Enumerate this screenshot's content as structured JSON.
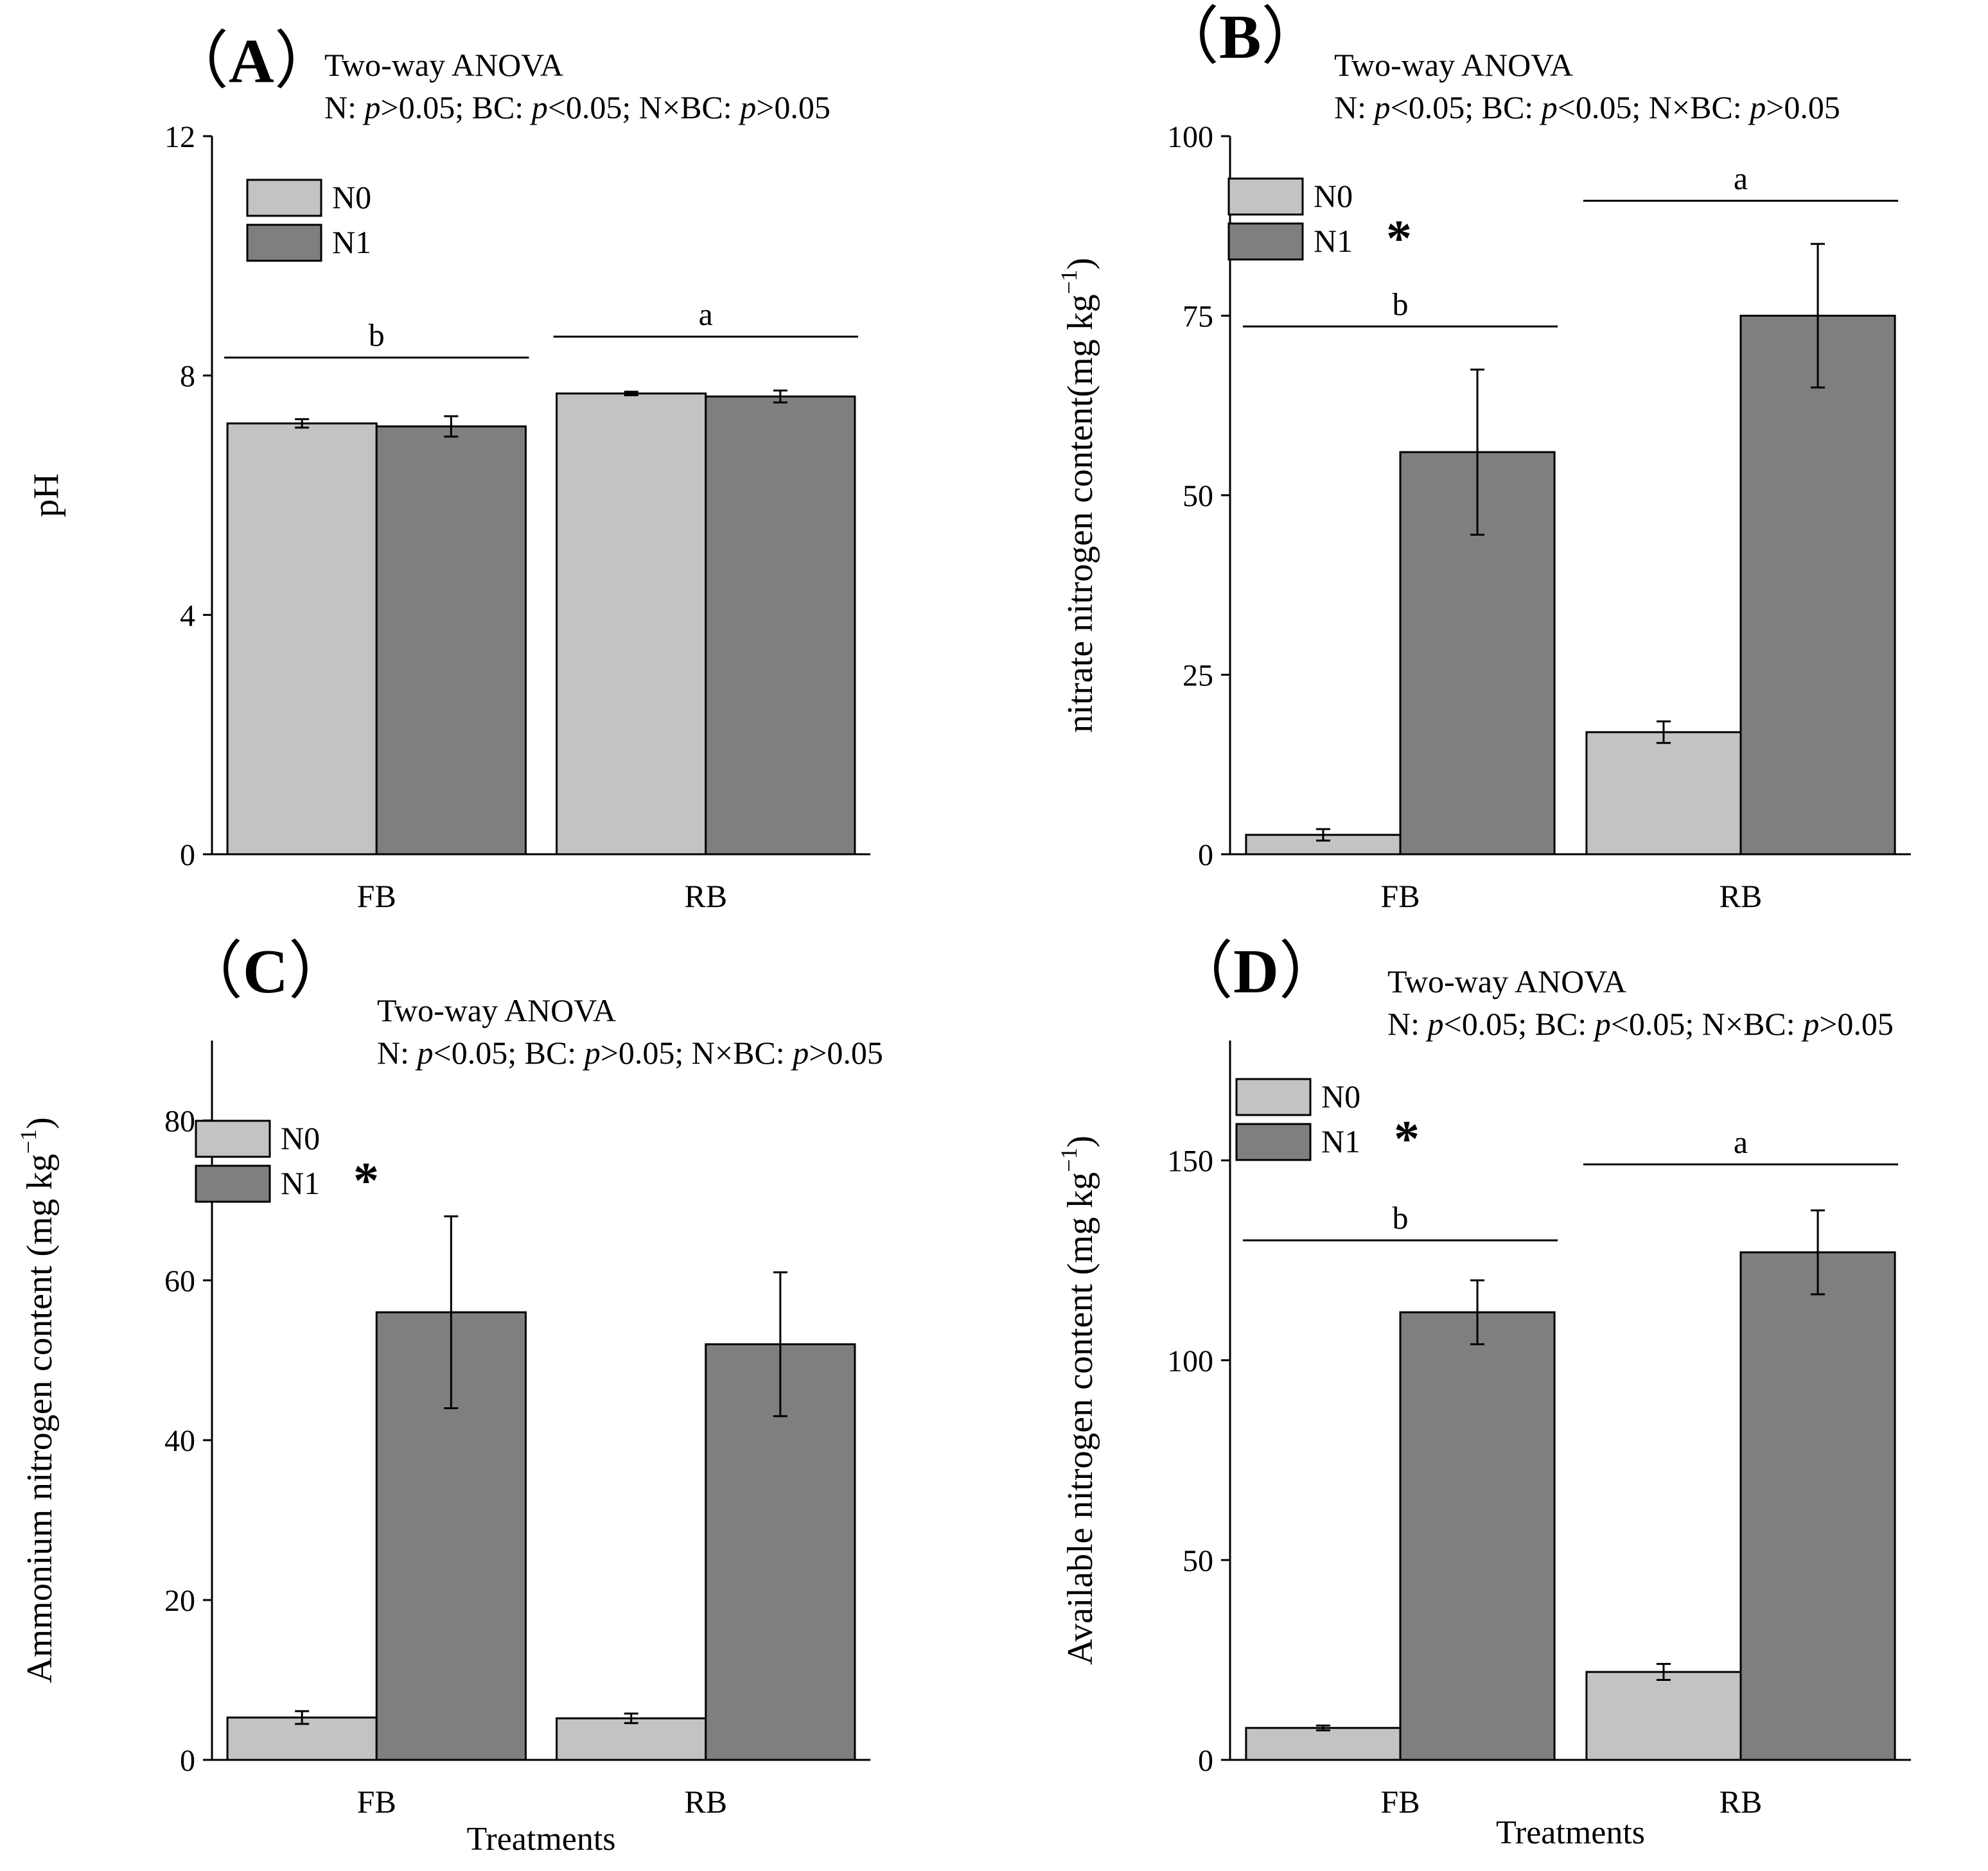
{
  "figure_colors": {
    "N0": "#c3c3c3",
    "N1": "#7f7f7f",
    "axis": "#000000"
  },
  "chart_data": [
    {
      "id": "A",
      "type": "bar",
      "panel_label": "A",
      "paren_open": "（",
      "paren_close": "）",
      "anova_title": "Two-way ANOVA",
      "anova_stats": "N: p>0.05; BC: p<0.05; N×BC: p>0.05",
      "ylabel": "pH",
      "xlabel": "",
      "ylim": [
        0,
        12
      ],
      "yticks": [
        0,
        4,
        8,
        12
      ],
      "categories": [
        "FB",
        "RB"
      ],
      "series": [
        {
          "name": "N0",
          "values": [
            7.2,
            7.7
          ],
          "errors": [
            0.07,
            0.03
          ]
        },
        {
          "name": "N1",
          "values": [
            7.15,
            7.65
          ],
          "errors": [
            0.17,
            0.1
          ]
        }
      ],
      "significance": [
        {
          "category": "FB",
          "letter": "b",
          "level": 8.3
        },
        {
          "category": "RB",
          "letter": "a",
          "level": 8.65
        }
      ],
      "legend_star": "",
      "legend_position": "top-left"
    },
    {
      "id": "B",
      "type": "bar",
      "panel_label": "B",
      "paren_open": "（",
      "paren_close": "）",
      "anova_title": "Two-way ANOVA",
      "anova_stats": "N: p<0.05; BC: p<0.05; N×BC: p>0.05",
      "ylabel": "nitrate nitrogen content(mg kg",
      "ylabel_sup": "−1",
      "ylabel_close": ")",
      "xlabel": "",
      "ylim": [
        0,
        100
      ],
      "yticks": [
        0,
        25,
        50,
        75,
        100
      ],
      "categories": [
        "FB",
        "RB"
      ],
      "series": [
        {
          "name": "N0",
          "values": [
            2.7,
            17
          ],
          "errors": [
            0.8,
            1.5
          ]
        },
        {
          "name": "N1",
          "values": [
            56,
            75
          ],
          "errors": [
            11.5,
            10
          ]
        }
      ],
      "significance": [
        {
          "category": "FB",
          "letter": "b",
          "level": 73.5
        },
        {
          "category": "RB",
          "letter": "a",
          "level": 91
        }
      ],
      "legend_star": "*",
      "legend_position": "top-left"
    },
    {
      "id": "C",
      "type": "bar",
      "panel_label": "C",
      "paren_open": "（",
      "paren_close": "）",
      "anova_title": "Two-way ANOVA",
      "anova_stats": "N: p<0.05; BC: p>0.05; N×BC: p>0.05",
      "ylabel": "Ammonium nitrogen content (mg kg",
      "ylabel_sup": "−1",
      "ylabel_close": ")",
      "xlabel": "Treatments",
      "ylim": [
        0,
        90
      ],
      "yticks": [
        0,
        20,
        40,
        60,
        80
      ],
      "categories": [
        "FB",
        "RB"
      ],
      "series": [
        {
          "name": "N0",
          "values": [
            5.3,
            5.2
          ],
          "errors": [
            0.8,
            0.6
          ]
        },
        {
          "name": "N1",
          "values": [
            56,
            52
          ],
          "errors": [
            12,
            9
          ]
        }
      ],
      "significance": [],
      "legend_star": "*",
      "legend_position": "top-left"
    },
    {
      "id": "D",
      "type": "bar",
      "panel_label": "D",
      "paren_open": "（",
      "paren_close": "）",
      "anova_title": "Two-way ANOVA",
      "anova_stats": "N: p<0.05; BC: p<0.05; N×BC: p>0.05",
      "ylabel": "Available nitrogen content (mg kg",
      "ylabel_sup": "−1",
      "ylabel_close": ")",
      "xlabel": "Treatments",
      "ylim": [
        0,
        180
      ],
      "yticks": [
        0,
        50,
        100,
        150
      ],
      "categories": [
        "FB",
        "RB"
      ],
      "series": [
        {
          "name": "N0",
          "values": [
            8,
            22
          ],
          "errors": [
            0.6,
            2
          ]
        },
        {
          "name": "N1",
          "values": [
            112,
            127
          ],
          "errors": [
            8,
            10.5
          ]
        }
      ],
      "significance": [
        {
          "category": "FB",
          "letter": "b",
          "level": 130
        },
        {
          "category": "RB",
          "letter": "a",
          "level": 149
        }
      ],
      "legend_star": "*",
      "legend_position": "top-left"
    }
  ]
}
